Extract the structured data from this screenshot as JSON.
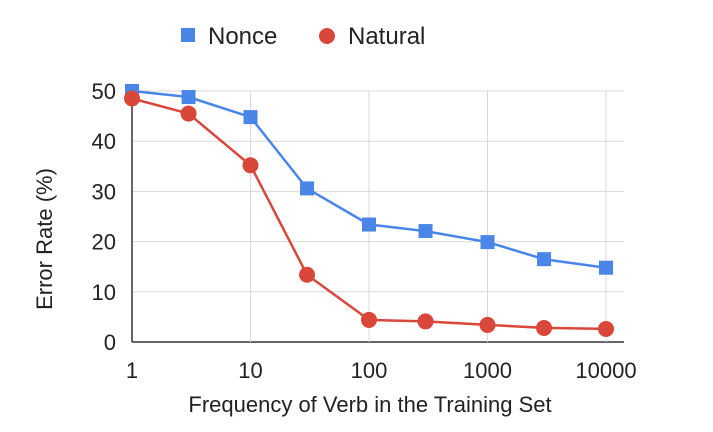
{
  "chart_data": {
    "type": "line",
    "xlabel": "Frequency of Verb in the Training Set",
    "ylabel": "Error Rate (%)",
    "x_scale": "log",
    "xlim": [
      1,
      10000
    ],
    "ylim": [
      0,
      50
    ],
    "x_ticks": [
      1,
      10,
      100,
      1000,
      10000
    ],
    "x_tick_labels": [
      "1",
      "10",
      "100",
      "1000",
      "10000"
    ],
    "y_ticks": [
      0,
      10,
      20,
      30,
      40,
      50
    ],
    "y_tick_labels": [
      "0",
      "10",
      "20",
      "30",
      "40",
      "50"
    ],
    "grid": true,
    "legend_position": "top",
    "x": [
      1,
      3,
      10,
      30,
      100,
      300,
      1000,
      3000,
      10000
    ],
    "series": [
      {
        "name": "Nonce",
        "color": "#4a86e8",
        "marker": "square",
        "values": [
          50,
          48.8,
          44.8,
          30.6,
          23.4,
          22.1,
          19.9,
          16.5,
          14.8
        ]
      },
      {
        "name": "Natural",
        "color": "#d9463a",
        "marker": "circle",
        "values": [
          48.5,
          45.5,
          35.2,
          13.4,
          4.4,
          4.1,
          3.4,
          2.8,
          2.6
        ]
      }
    ]
  }
}
